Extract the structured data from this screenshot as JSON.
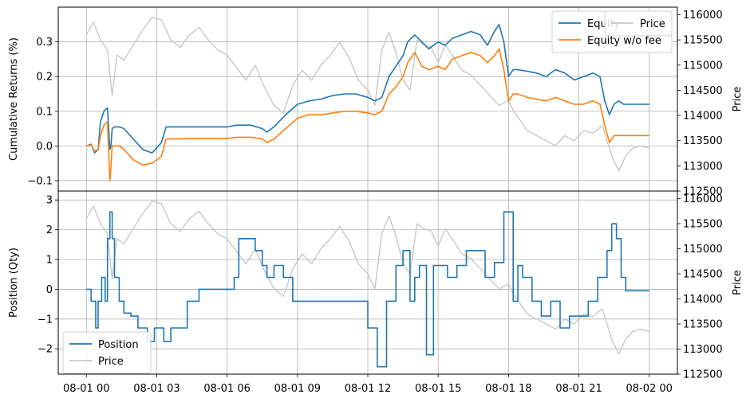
{
  "chart_data": [
    {
      "type": "line",
      "panel": "top",
      "ylabel": "Cumulative Returns (%)",
      "y2label": "Price",
      "ylim": [
        -0.13,
        0.4
      ],
      "y2lim": [
        112500,
        116150
      ],
      "yticks": [
        "−0.1",
        "0.0",
        "0.1",
        "0.2",
        "0.3"
      ],
      "yticks_values": [
        -0.1,
        0.0,
        0.1,
        0.2,
        0.3
      ],
      "y2ticks": [
        "112500",
        "113000",
        "113500",
        "114000",
        "114500",
        "115000",
        "115500",
        "116000"
      ],
      "y2ticks_values": [
        112500,
        113000,
        113500,
        114000,
        114500,
        115000,
        115500,
        116000
      ],
      "grid": true,
      "legend": {
        "placement": "top-right",
        "entries": [
          "Equity",
          "Equity w/o fee"
        ]
      },
      "legend2": {
        "placement": "top-right",
        "entries": [
          "Price"
        ]
      },
      "series": [
        {
          "name": "Equity",
          "color": "#1f77b4",
          "axis": "left",
          "x": [
            0,
            0.2,
            0.35,
            0.5,
            0.6,
            0.75,
            0.9,
            1.0,
            1.05,
            1.1,
            1.2,
            1.4,
            1.6,
            2.0,
            2.4,
            2.8,
            3.2,
            3.4,
            4.0,
            5.0,
            6.0,
            6.4,
            7.0,
            7.5,
            7.7,
            8.0,
            8.5,
            9.0,
            9.5,
            10.0,
            10.5,
            11.0,
            11.5,
            12.0,
            12.3,
            12.6,
            12.9,
            13.2,
            13.5,
            13.7,
            14.0,
            14.3,
            14.6,
            15.0,
            15.3,
            15.6,
            16.0,
            16.4,
            16.8,
            17.1,
            17.4,
            17.6,
            17.8,
            18.0,
            18.2,
            18.4,
            18.8,
            19.2,
            19.6,
            20.0,
            20.4,
            20.8,
            21.2,
            21.6,
            21.9,
            22.1,
            22.3,
            22.5,
            22.7,
            22.9,
            23.1,
            23.4,
            23.7,
            24.0
          ],
          "y": [
            0.0,
            0.005,
            -0.02,
            -0.01,
            0.07,
            0.1,
            0.11,
            -0.01,
            0.0,
            0.05,
            0.055,
            0.055,
            0.05,
            0.02,
            -0.01,
            -0.02,
            0.01,
            0.055,
            0.055,
            0.055,
            0.055,
            0.06,
            0.06,
            0.05,
            0.04,
            0.055,
            0.09,
            0.12,
            0.13,
            0.135,
            0.145,
            0.15,
            0.15,
            0.14,
            0.13,
            0.14,
            0.2,
            0.23,
            0.26,
            0.3,
            0.32,
            0.3,
            0.28,
            0.3,
            0.29,
            0.31,
            0.32,
            0.33,
            0.32,
            0.29,
            0.33,
            0.35,
            0.3,
            0.2,
            0.22,
            0.22,
            0.215,
            0.21,
            0.2,
            0.22,
            0.21,
            0.19,
            0.2,
            0.21,
            0.2,
            0.13,
            0.09,
            0.12,
            0.13,
            0.12,
            0.12,
            0.12,
            0.12,
            0.12
          ]
        },
        {
          "name": "Equity w/o fee",
          "color": "#ff7f0e",
          "axis": "left",
          "x": [
            0,
            0.2,
            0.35,
            0.5,
            0.6,
            0.75,
            0.9,
            1.0,
            1.05,
            1.1,
            1.2,
            1.4,
            1.6,
            2.0,
            2.4,
            2.8,
            3.2,
            3.4,
            4.0,
            5.0,
            6.0,
            6.4,
            7.0,
            7.5,
            7.7,
            8.0,
            8.5,
            9.0,
            9.5,
            10.0,
            10.5,
            11.0,
            11.5,
            12.0,
            12.3,
            12.6,
            12.9,
            13.2,
            13.5,
            13.7,
            14.0,
            14.3,
            14.6,
            15.0,
            15.3,
            15.6,
            16.0,
            16.4,
            16.8,
            17.1,
            17.4,
            17.6,
            17.8,
            18.0,
            18.2,
            18.4,
            18.8,
            19.2,
            19.6,
            20.0,
            20.4,
            20.8,
            21.2,
            21.6,
            21.9,
            22.1,
            22.3,
            22.5,
            22.7,
            22.9,
            23.1,
            23.4,
            23.7,
            24.0
          ],
          "y": [
            0.0,
            0.003,
            -0.015,
            -0.01,
            0.03,
            0.06,
            0.07,
            -0.1,
            -0.06,
            0.0,
            0.0,
            0.0,
            -0.01,
            -0.04,
            -0.055,
            -0.05,
            -0.03,
            0.02,
            0.02,
            0.022,
            0.022,
            0.025,
            0.025,
            0.02,
            0.01,
            0.02,
            0.05,
            0.08,
            0.09,
            0.09,
            0.095,
            0.1,
            0.1,
            0.095,
            0.09,
            0.1,
            0.15,
            0.17,
            0.2,
            0.24,
            0.27,
            0.23,
            0.22,
            0.23,
            0.22,
            0.25,
            0.26,
            0.27,
            0.26,
            0.24,
            0.26,
            0.28,
            0.22,
            0.13,
            0.15,
            0.15,
            0.14,
            0.135,
            0.13,
            0.14,
            0.13,
            0.12,
            0.12,
            0.13,
            0.12,
            0.06,
            0.01,
            0.03,
            0.03,
            0.03,
            0.03,
            0.03,
            0.03,
            0.03
          ]
        },
        {
          "name": "Price",
          "color": "#c8c8c8",
          "axis": "right",
          "x": [
            0,
            0.3,
            0.6,
            0.9,
            1.1,
            1.3,
            1.6,
            2.0,
            2.4,
            2.8,
            3.2,
            3.6,
            4.0,
            4.4,
            4.8,
            5.2,
            5.6,
            6.0,
            6.4,
            6.8,
            7.2,
            7.6,
            8.0,
            8.4,
            8.8,
            9.2,
            9.6,
            10.0,
            10.4,
            10.8,
            11.2,
            11.6,
            12.0,
            12.3,
            12.6,
            12.9,
            13.2,
            13.5,
            13.8,
            14.1,
            14.4,
            14.7,
            15.0,
            15.3,
            15.6,
            16.0,
            16.4,
            16.8,
            17.2,
            17.6,
            18.0,
            18.2,
            18.5,
            18.8,
            19.2,
            19.6,
            20.0,
            20.4,
            20.8,
            21.2,
            21.6,
            22.0,
            22.4,
            22.7,
            23.0,
            23.3,
            23.6,
            24.0
          ],
          "y": [
            115600,
            115850,
            115500,
            115300,
            114400,
            115200,
            115100,
            115400,
            115700,
            115950,
            115900,
            115500,
            115350,
            115600,
            115750,
            115500,
            115300,
            115200,
            114950,
            114700,
            115000,
            114550,
            114200,
            114050,
            114600,
            114900,
            114700,
            115000,
            115200,
            115450,
            115150,
            114700,
            114500,
            114200,
            115300,
            115650,
            115250,
            114700,
            114500,
            115500,
            115400,
            115350,
            115050,
            115400,
            115200,
            114900,
            114800,
            114600,
            114400,
            114200,
            114300,
            114100,
            113900,
            113700,
            113600,
            113500,
            113400,
            113600,
            113500,
            113700,
            113650,
            113800,
            113200,
            112900,
            113200,
            113350,
            113400,
            113350
          ]
        }
      ]
    },
    {
      "type": "line",
      "panel": "bottom",
      "ylabel": "Position (Qty)",
      "y2label": "Price",
      "ylim": [
        -2.85,
        3.3
      ],
      "y2lim": [
        112500,
        116150
      ],
      "yticks": [
        "−2",
        "−1",
        "0",
        "1",
        "2",
        "3"
      ],
      "yticks_values": [
        -2,
        -1,
        0,
        1,
        2,
        3
      ],
      "y2ticks": [
        "112500",
        "113000",
        "113500",
        "114000",
        "114500",
        "115000",
        "115500",
        "116000"
      ],
      "y2ticks_values": [
        112500,
        113000,
        113500,
        114000,
        114500,
        115000,
        115500,
        116000
      ],
      "grid": true,
      "xticks": [
        "08-01 00",
        "08-01 03",
        "08-01 06",
        "08-01 09",
        "08-01 12",
        "08-01 15",
        "08-01 18",
        "08-01 21",
        "08-02 00"
      ],
      "xticks_values": [
        0,
        3,
        6,
        9,
        12,
        15,
        18,
        21,
        24
      ],
      "xlim": [
        -1.2,
        25.2
      ],
      "legend": {
        "placement": "lower-left",
        "entries": [
          "Position",
          "Price"
        ]
      },
      "series": [
        {
          "name": "Position",
          "color": "#1f77b4",
          "axis": "left",
          "step": true,
          "x": [
            0,
            0.2,
            0.4,
            0.5,
            0.65,
            0.8,
            0.9,
            1.0,
            1.1,
            1.2,
            1.4,
            1.6,
            1.9,
            2.2,
            2.6,
            2.9,
            3.3,
            3.6,
            3.9,
            4.3,
            4.8,
            5.5,
            6.3,
            6.5,
            7.2,
            7.5,
            7.7,
            8.0,
            8.4,
            8.8,
            9.2,
            9.6,
            10.0,
            10.4,
            10.8,
            11.2,
            12.0,
            12.4,
            12.8,
            13.2,
            13.5,
            13.8,
            14.0,
            14.2,
            14.5,
            14.8,
            15.0,
            15.4,
            15.8,
            16.2,
            16.6,
            17.0,
            17.4,
            17.8,
            18.2,
            18.4,
            18.6,
            19.0,
            19.4,
            19.8,
            20.2,
            20.6,
            21.0,
            21.4,
            21.8,
            22.2,
            22.4,
            22.6,
            22.8,
            23.0,
            24.0
          ],
          "y": [
            0,
            -0.4,
            -1.3,
            -0.4,
            0.4,
            -0.4,
            1.7,
            2.6,
            1.7,
            0.4,
            -0.4,
            -0.8,
            -0.9,
            -1.3,
            -1.75,
            -1.3,
            -1.75,
            -1.3,
            -1.3,
            -0.4,
            0.0,
            0.0,
            0.4,
            1.7,
            1.3,
            0.8,
            0.4,
            0.8,
            0.4,
            -0.4,
            -0.4,
            -0.4,
            -0.4,
            -0.4,
            -0.4,
            -0.4,
            -1.3,
            -2.6,
            -0.4,
            0.8,
            1.3,
            -0.4,
            0.4,
            0.8,
            -2.2,
            0.8,
            0.8,
            0.4,
            0.8,
            1.3,
            1.3,
            0.4,
            0.9,
            2.6,
            -0.4,
            0.8,
            0.4,
            -0.4,
            -0.9,
            -0.4,
            -1.3,
            -0.9,
            -0.9,
            -0.4,
            0.4,
            1.3,
            2.2,
            1.7,
            0.4,
            -0.05,
            -0.05
          ]
        },
        {
          "name": "Price",
          "color": "#c8c8c8",
          "axis": "right",
          "x": [
            0,
            0.3,
            0.6,
            0.9,
            1.1,
            1.3,
            1.6,
            2.0,
            2.4,
            2.8,
            3.2,
            3.6,
            4.0,
            4.4,
            4.8,
            5.2,
            5.6,
            6.0,
            6.4,
            6.8,
            7.2,
            7.6,
            8.0,
            8.4,
            8.8,
            9.2,
            9.6,
            10.0,
            10.4,
            10.8,
            11.2,
            11.6,
            12.0,
            12.3,
            12.6,
            12.9,
            13.2,
            13.5,
            13.8,
            14.1,
            14.4,
            14.7,
            15.0,
            15.3,
            15.6,
            16.0,
            16.4,
            16.8,
            17.2,
            17.6,
            18.0,
            18.2,
            18.5,
            18.8,
            19.2,
            19.6,
            20.0,
            20.4,
            20.8,
            21.2,
            21.6,
            22.0,
            22.4,
            22.7,
            23.0,
            23.3,
            23.6,
            24.0
          ],
          "y": [
            115600,
            115850,
            115500,
            115300,
            114400,
            115200,
            115100,
            115400,
            115700,
            115950,
            115900,
            115500,
            115350,
            115600,
            115750,
            115500,
            115300,
            115200,
            114950,
            114700,
            115000,
            114550,
            114200,
            114050,
            114600,
            114900,
            114700,
            115000,
            115200,
            115450,
            115150,
            114700,
            114500,
            114200,
            115300,
            115650,
            115250,
            114700,
            114500,
            115500,
            115400,
            115350,
            115050,
            115400,
            115200,
            114900,
            114800,
            114600,
            114400,
            114200,
            114300,
            114100,
            113900,
            113700,
            113600,
            113500,
            113400,
            113600,
            113500,
            113700,
            113650,
            113800,
            113200,
            112900,
            113200,
            113350,
            113400,
            113350
          ]
        }
      ]
    }
  ]
}
